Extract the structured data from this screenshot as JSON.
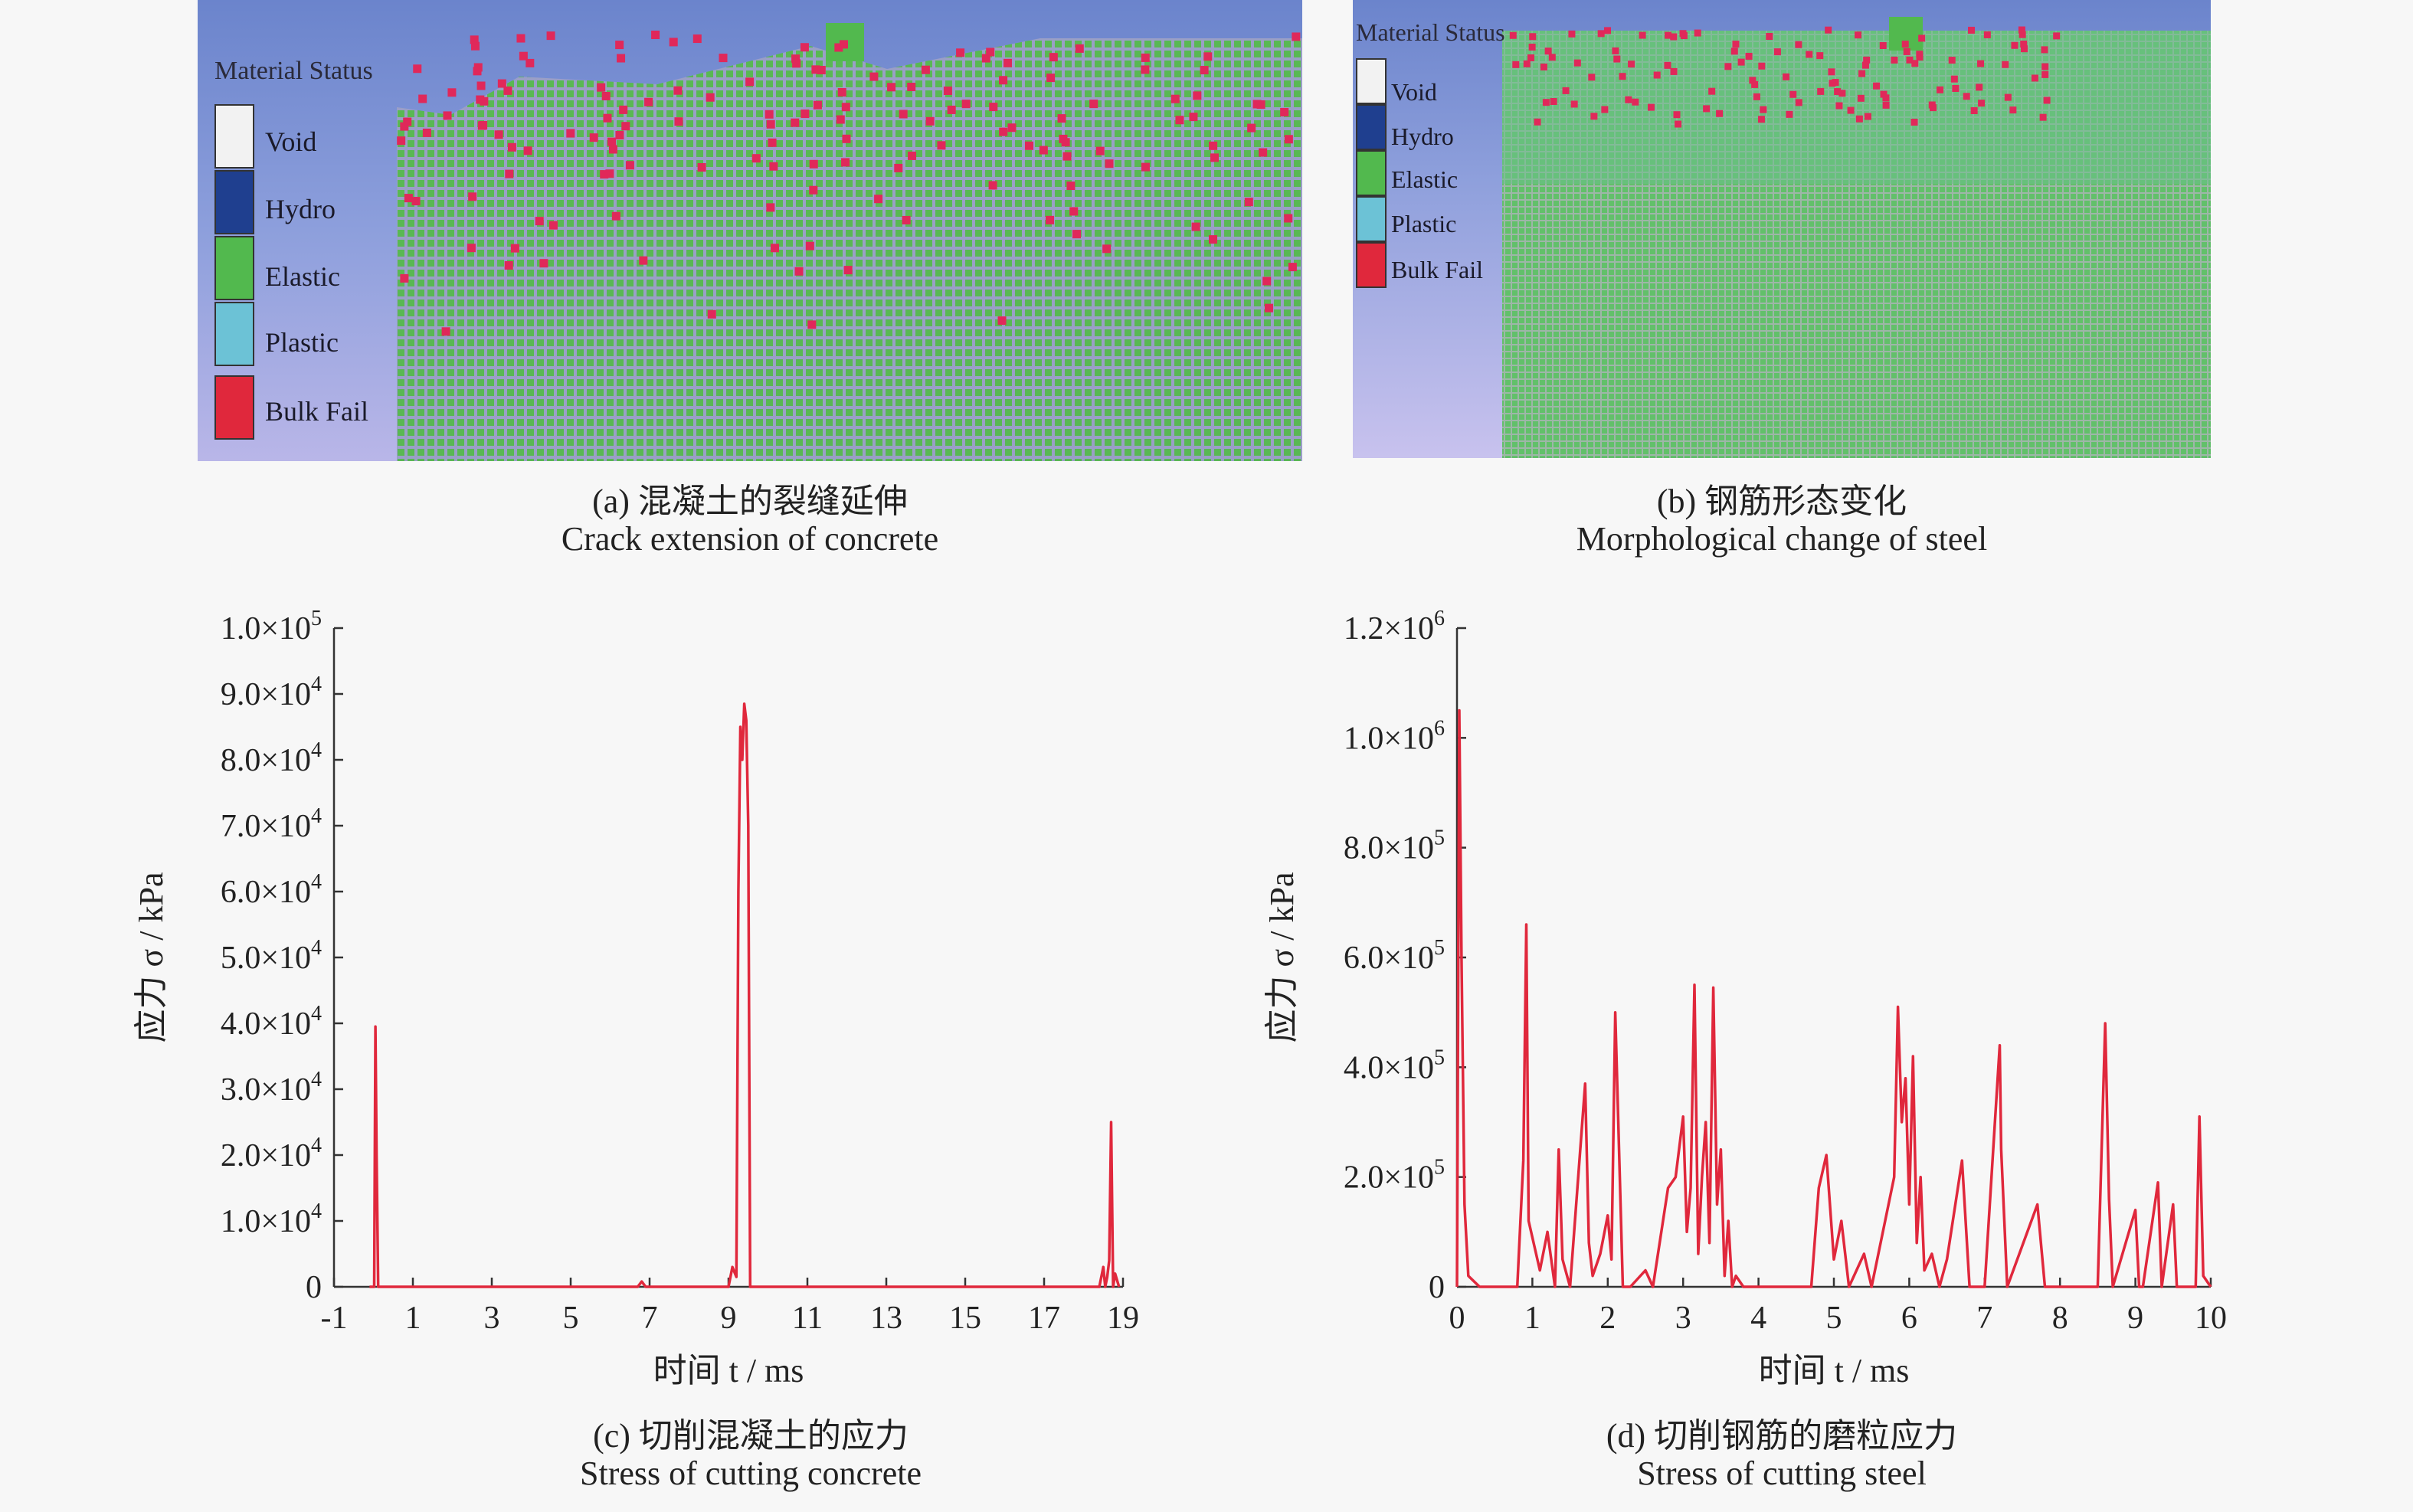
{
  "panels": {
    "a": {
      "legend_title": "Material Status",
      "legend": [
        {
          "label": "Void",
          "color": "#f2f2f2"
        },
        {
          "label": "Hydro",
          "color": "#1f3f8f"
        },
        {
          "label": "Elastic",
          "color": "#52b94e"
        },
        {
          "label": "Plastic",
          "color": "#6cc2d6"
        },
        {
          "label": "Bulk Fail",
          "color": "#e0283c"
        }
      ],
      "caption_cn": "(a) 混凝土的裂缝延伸",
      "caption_en": "Crack extension of concrete"
    },
    "b": {
      "legend_title": "Material Status",
      "legend": [
        {
          "label": "Void",
          "color": "#f2f2f2"
        },
        {
          "label": "Hydro",
          "color": "#1f3f8f"
        },
        {
          "label": "Elastic",
          "color": "#52b94e"
        },
        {
          "label": "Plastic",
          "color": "#6cc2d6"
        },
        {
          "label": "Bulk Fail",
          "color": "#e0283c"
        }
      ],
      "caption_cn": "(b) 钢筋形态变化",
      "caption_en": "Morphological change of steel"
    },
    "c": {
      "caption_cn": "(c) 切削混凝土的应力",
      "caption_en": "Stress of cutting concrete"
    },
    "d": {
      "caption_cn": "(d) 切削钢筋的磨粒应力",
      "caption_en": "Stress of cutting steel"
    }
  },
  "colors": {
    "line": "#e0283c",
    "axis": "#333333",
    "sim_blue": "#6f86d0",
    "sim_green": "#6cc08a",
    "fail_dot": "#e0285a"
  },
  "chart_data": [
    {
      "type": "line",
      "ylabel": "应力 σ / kPa",
      "xlabel": "时间 t / ms",
      "xlim": [
        -1,
        19
      ],
      "ylim": [
        0,
        100000
      ],
      "xticks": [
        "-1",
        "1",
        "3",
        "5",
        "7",
        "9",
        "11",
        "13",
        "15",
        "17",
        "19"
      ],
      "yticks": [
        {
          "m": "0",
          "e": ""
        },
        {
          "m": "1.0×10",
          "e": "4"
        },
        {
          "m": "2.0×10",
          "e": "4"
        },
        {
          "m": "3.0×10",
          "e": "4"
        },
        {
          "m": "4.0×10",
          "e": "4"
        },
        {
          "m": "5.0×10",
          "e": "4"
        },
        {
          "m": "6.0×10",
          "e": "4"
        },
        {
          "m": "7.0×10",
          "e": "4"
        },
        {
          "m": "8.0×10",
          "e": "4"
        },
        {
          "m": "9.0×10",
          "e": "4"
        },
        {
          "m": "1.0×10",
          "e": "5"
        }
      ],
      "series": [
        {
          "x": [
            -0.1,
            0.02,
            0.05,
            0.08,
            0.12,
            0.15,
            6.7,
            6.8,
            6.9,
            9.0,
            9.1,
            9.2,
            9.25,
            9.3,
            9.35,
            9.4,
            9.45,
            9.5,
            9.55,
            9.6,
            9.7,
            18.4,
            18.5,
            18.55,
            18.6,
            18.65,
            18.7,
            18.75,
            18.8,
            18.9
          ],
          "y": [
            0,
            0,
            39500,
            20000,
            0,
            0,
            0,
            800,
            0,
            0,
            3000,
            1500,
            60000,
            85000,
            80000,
            88500,
            86000,
            70000,
            0,
            0,
            0,
            0,
            3000,
            0,
            1500,
            4000,
            25000,
            0,
            2000,
            0
          ]
        }
      ]
    },
    {
      "type": "line",
      "ylabel": "应力 σ / kPa",
      "xlabel": "时间 t / ms",
      "xlim": [
        0,
        10
      ],
      "ylim": [
        0,
        1200000
      ],
      "xticks": [
        "0",
        "1",
        "2",
        "3",
        "4",
        "5",
        "6",
        "7",
        "8",
        "9",
        "10"
      ],
      "yticks": [
        {
          "m": "0",
          "e": ""
        },
        {
          "m": "2.0×10",
          "e": "5"
        },
        {
          "m": "4.0×10",
          "e": "5"
        },
        {
          "m": "6.0×10",
          "e": "5"
        },
        {
          "m": "8.0×10",
          "e": "5"
        },
        {
          "m": "1.0×10",
          "e": "6"
        },
        {
          "m": "1.2×10",
          "e": "6"
        }
      ],
      "series": [
        {
          "x": [
            0.0,
            0.03,
            0.06,
            0.1,
            0.15,
            0.3,
            0.8,
            0.88,
            0.92,
            0.95,
            1.0,
            1.1,
            1.2,
            1.3,
            1.35,
            1.4,
            1.5,
            1.7,
            1.75,
            1.8,
            1.9,
            2.0,
            2.05,
            2.1,
            2.2,
            2.3,
            2.5,
            2.6,
            2.8,
            2.9,
            3.0,
            3.05,
            3.1,
            3.15,
            3.2,
            3.25,
            3.3,
            3.35,
            3.4,
            3.45,
            3.5,
            3.55,
            3.6,
            3.65,
            3.7,
            3.8,
            4.0,
            4.7,
            4.8,
            4.9,
            5.0,
            5.1,
            5.2,
            5.4,
            5.5,
            5.8,
            5.85,
            5.9,
            5.95,
            6.0,
            6.05,
            6.1,
            6.15,
            6.2,
            6.3,
            6.4,
            6.5,
            6.7,
            6.8,
            7.0,
            7.2,
            7.22,
            7.3,
            7.7,
            7.8,
            8.5,
            8.6,
            8.65,
            8.7,
            9.0,
            9.05,
            9.1,
            9.3,
            9.35,
            9.5,
            9.55,
            9.6,
            9.8,
            9.85,
            9.9,
            10.0
          ],
          "y": [
            0,
            1050000,
            600000,
            150000,
            20000,
            0,
            0,
            230000,
            660000,
            120000,
            90000,
            30000,
            100000,
            0,
            250000,
            50000,
            0,
            370000,
            80000,
            20000,
            60000,
            130000,
            50000,
            500000,
            0,
            0,
            30000,
            0,
            180000,
            200000,
            310000,
            100000,
            180000,
            550000,
            60000,
            200000,
            300000,
            80000,
            545000,
            150000,
            250000,
            20000,
            120000,
            0,
            20000,
            0,
            0,
            0,
            180000,
            240000,
            50000,
            120000,
            0,
            60000,
            0,
            200000,
            510000,
            300000,
            380000,
            150000,
            420000,
            80000,
            200000,
            30000,
            60000,
            0,
            50000,
            230000,
            0,
            0,
            440000,
            250000,
            0,
            150000,
            0,
            0,
            480000,
            160000,
            0,
            140000,
            0,
            0,
            190000,
            0,
            150000,
            0,
            0,
            0,
            310000,
            20000,
            0
          ]
        }
      ]
    }
  ]
}
